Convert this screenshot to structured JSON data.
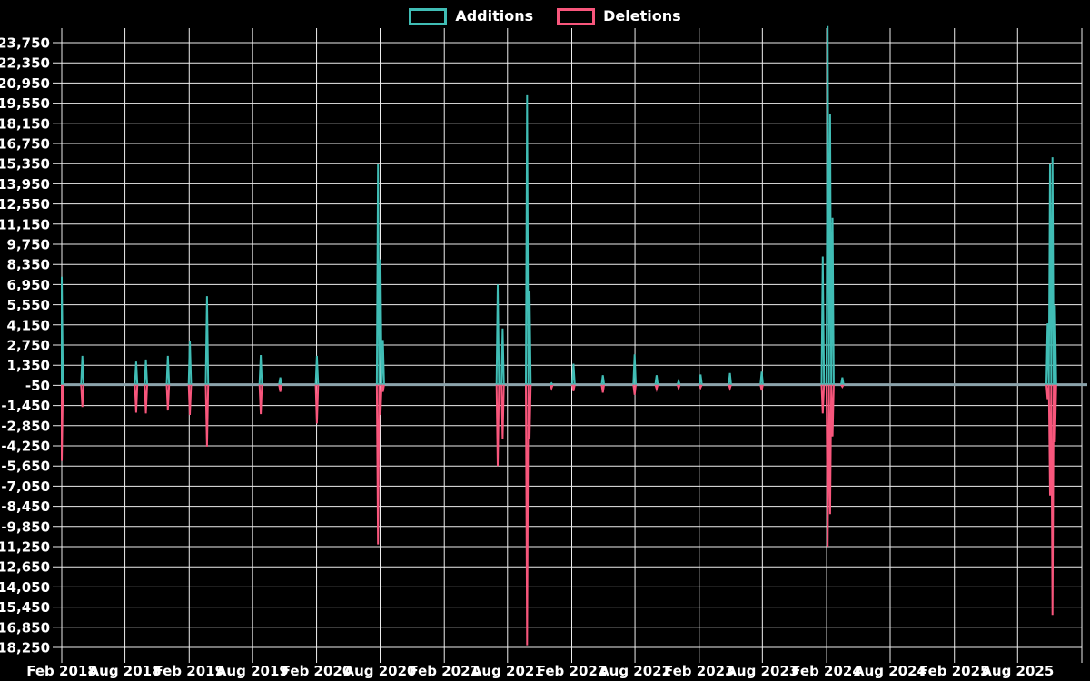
{
  "chart_data": {
    "type": "line",
    "grid": true,
    "legend_position": "top",
    "background_color": "#000000",
    "grid_color": "#ededed",
    "tick_text_color": "#ffffff",
    "zero_line_color": "#8ba3ab",
    "x_range": [
      "2018-02-01",
      "2026-02-01"
    ],
    "ylim": [
      -19070,
      24650
    ],
    "x_labels": [
      "Feb 2018",
      "Aug 2018",
      "Feb 2019",
      "Aug 2019",
      "Feb 2020",
      "Aug 2020",
      "Feb 2021",
      "Aug 2021",
      "Feb 2022",
      "Aug 2022",
      "Feb 2023",
      "Aug 2023",
      "Feb 2024",
      "Aug 2024",
      "Feb 2025",
      "Aug 2025"
    ],
    "y_tick_labels": [
      "23,750",
      "22,350",
      "20,950",
      "19,550",
      "18,150",
      "16,750",
      "15,350",
      "13,950",
      "12,550",
      "11,150",
      "9,750",
      "8,350",
      "6,950",
      "5,550",
      "4,150",
      "2,750",
      "1,350",
      "-50",
      "-1,450",
      "-2,850",
      "-4,250",
      "-5,650",
      "-7,050",
      "-8,450",
      "-9,850",
      "-11,250",
      "-12,650",
      "-14,050",
      "-15,450",
      "-16,850",
      "-18,250"
    ],
    "y_tick_values": [
      23750,
      22350,
      20950,
      19550,
      18150,
      16750,
      15350,
      13950,
      12550,
      11150,
      9750,
      8350,
      6950,
      5550,
      4150,
      2750,
      1350,
      -50,
      -1450,
      -2850,
      -4250,
      -5650,
      -7050,
      -8450,
      -9850,
      -11250,
      -12650,
      -14050,
      -15450,
      -16850,
      -18250
    ],
    "series": [
      {
        "name": "Additions",
        "color": "#40bdb5"
      },
      {
        "name": "Deletions",
        "color": "#f8567c"
      }
    ],
    "baseline_value": 0,
    "events": [
      {
        "date": "2018-02-01",
        "additions": 7500,
        "deletions": -5300
      },
      {
        "date": "2018-04-01",
        "additions": 2000,
        "deletions": -1550
      },
      {
        "date": "2018-09-02",
        "additions": 1600,
        "deletions": -1950
      },
      {
        "date": "2018-09-30",
        "additions": 1750,
        "deletions": -2000
      },
      {
        "date": "2018-12-02",
        "additions": 2000,
        "deletions": -1800
      },
      {
        "date": "2019-02-03",
        "additions": 3050,
        "deletions": -2100
      },
      {
        "date": "2019-03-24",
        "additions": 6150,
        "deletions": -4300
      },
      {
        "date": "2019-08-25",
        "additions": 2050,
        "deletions": -2050
      },
      {
        "date": "2019-10-20",
        "additions": 500,
        "deletions": -500
      },
      {
        "date": "2020-02-02",
        "additions": 2000,
        "deletions": -2700
      },
      {
        "date": "2020-07-26",
        "additions": 15300,
        "deletions": -11100
      },
      {
        "date": "2020-08-02",
        "additions": 8700,
        "deletions": -2100
      },
      {
        "date": "2020-08-09",
        "additions": 3100,
        "deletions": -500
      },
      {
        "date": "2021-07-04",
        "additions": 6950,
        "deletions": -5650
      },
      {
        "date": "2021-07-18",
        "additions": 3900,
        "deletions": -3800
      },
      {
        "date": "2021-09-26",
        "additions": 20100,
        "deletions": -18100
      },
      {
        "date": "2021-10-03",
        "additions": 6500,
        "deletions": -3800
      },
      {
        "date": "2021-12-05",
        "additions": 100,
        "deletions": -250
      },
      {
        "date": "2022-02-06",
        "additions": 1450,
        "deletions": -450
      },
      {
        "date": "2022-05-01",
        "additions": 650,
        "deletions": -550
      },
      {
        "date": "2022-07-31",
        "additions": 2100,
        "deletions": -700
      },
      {
        "date": "2022-10-02",
        "additions": 650,
        "deletions": -300
      },
      {
        "date": "2022-12-04",
        "additions": 250,
        "deletions": -250
      },
      {
        "date": "2023-02-05",
        "additions": 700,
        "deletions": -200
      },
      {
        "date": "2023-04-30",
        "additions": 800,
        "deletions": -250
      },
      {
        "date": "2023-07-30",
        "additions": 900,
        "deletions": -400
      },
      {
        "date": "2024-01-21",
        "additions": 8900,
        "deletions": -2000
      },
      {
        "date": "2024-02-04",
        "additions": 24900,
        "deletions": -11250
      },
      {
        "date": "2024-02-11",
        "additions": 18800,
        "deletions": -9000
      },
      {
        "date": "2024-02-18",
        "additions": 11600,
        "deletions": -3600
      },
      {
        "date": "2024-03-17",
        "additions": 500,
        "deletions": -150
      },
      {
        "date": "2025-10-26",
        "additions": 4250,
        "deletions": -1000
      },
      {
        "date": "2025-11-02",
        "additions": 15300,
        "deletions": -7700
      },
      {
        "date": "2025-11-09",
        "additions": 15800,
        "deletions": -16000
      },
      {
        "date": "2025-11-16",
        "additions": 5500,
        "deletions": -4000
      }
    ]
  }
}
